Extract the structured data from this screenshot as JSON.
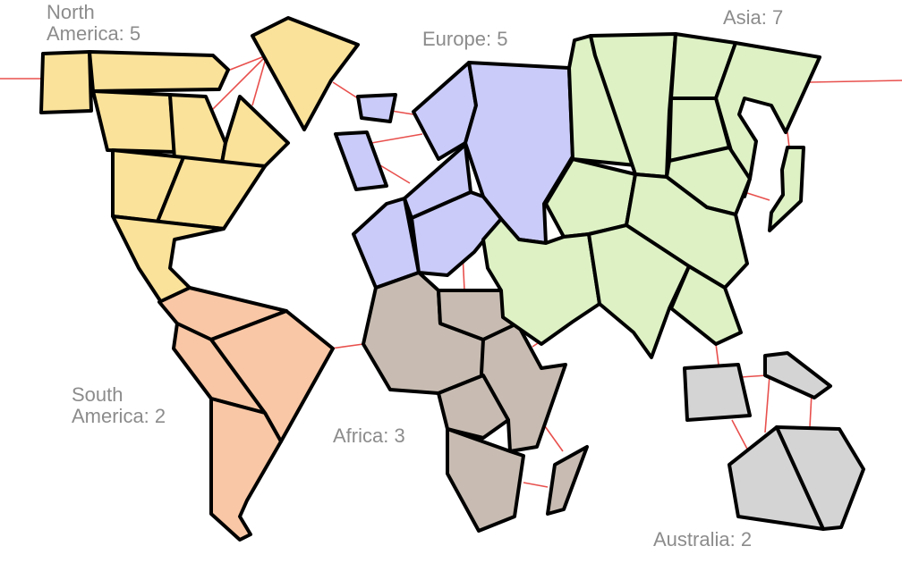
{
  "continents": {
    "north_america": {
      "name": "North America",
      "bonus": 5,
      "label": "North\nAmerica: 5",
      "color": "#fbe29a"
    },
    "south_america": {
      "name": "South America",
      "bonus": 2,
      "label": "South\nAmerica: 2",
      "color": "#f9c7a5"
    },
    "europe": {
      "name": "Europe",
      "bonus": 5,
      "label": "Europe: 5",
      "color": "#cacbf8"
    },
    "africa": {
      "name": "Africa",
      "bonus": 3,
      "label": "Africa: 3",
      "color": "#c8bcb2"
    },
    "asia": {
      "name": "Asia",
      "bonus": 7,
      "label": "Asia: 7",
      "color": "#ddf1c4"
    },
    "australia": {
      "name": "Australia",
      "bonus": 2,
      "label": "Australia: 2",
      "color": "#d4d4d4"
    }
  },
  "colors": {
    "border": "#000000",
    "connection": "#e8504d",
    "label_text": "#8c8c8c"
  }
}
